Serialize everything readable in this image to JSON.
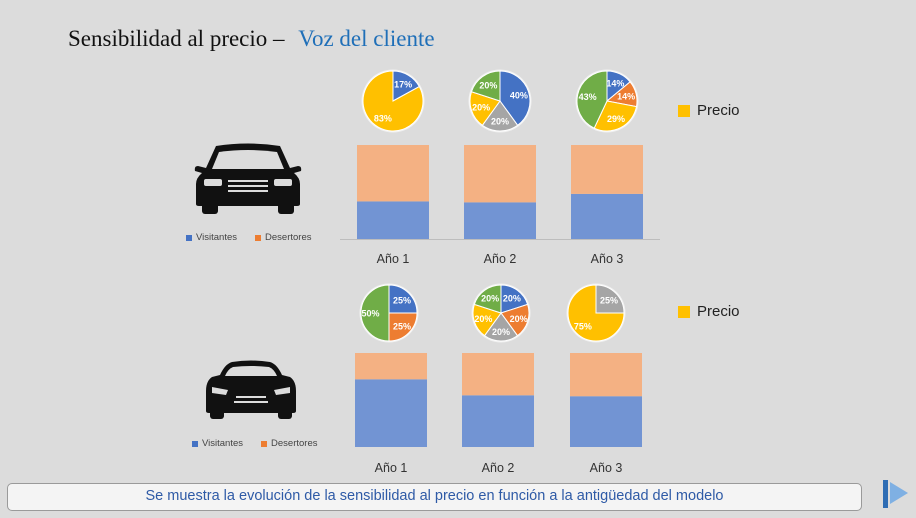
{
  "title": {
    "main": "Sensibilidad al precio –",
    "accent": "Voz del cliente"
  },
  "caption": "Se muestra la evolución de la sensibilidad al precio en función a la antigüedad del modelo",
  "colors": {
    "blue": "#4472c4",
    "orange": "#ed7d31",
    "gray": "#a5a5a5",
    "yellow": "#ffc000",
    "green": "#70ad47",
    "bar_blue": "#7294d3",
    "bar_orange": "#f4b183"
  },
  "icons": {
    "row1": "sedan-car-icon",
    "row2": "sports-car-icon",
    "logo": "brand-logo-icon"
  },
  "chart_data": [
    {
      "type": "bar",
      "stacked": true,
      "categories": [
        "Año 1",
        "Año 2",
        "Año 3"
      ],
      "series": [
        {
          "name": "Visitantes",
          "values": [
            40,
            39,
            48
          ]
        },
        {
          "name": "Desertores",
          "values": [
            60,
            61,
            52
          ]
        }
      ],
      "ylim": [
        0,
        100
      ],
      "legend": "bottom-left",
      "side_legend": "Precio",
      "pies": [
        {
          "slices": [
            {
              "value": 17,
              "label": "17%",
              "color": "blue"
            },
            {
              "value": 83,
              "label": "83%",
              "color": "yellow"
            }
          ]
        },
        {
          "slices": [
            {
              "value": 40,
              "label": "40%",
              "color": "blue"
            },
            {
              "value": 20,
              "label": "20%",
              "color": "gray"
            },
            {
              "value": 20,
              "label": "20%",
              "color": "yellow"
            },
            {
              "value": 20,
              "label": "20%",
              "color": "green"
            }
          ]
        },
        {
          "slices": [
            {
              "value": 14,
              "label": "14%",
              "color": "blue"
            },
            {
              "value": 14,
              "label": "14%",
              "color": "orange"
            },
            {
              "value": 29,
              "label": "29%",
              "color": "yellow"
            },
            {
              "value": 43,
              "label": "43%",
              "color": "green"
            }
          ]
        }
      ]
    },
    {
      "type": "bar",
      "stacked": true,
      "categories": [
        "Año 1",
        "Año 2",
        "Año 3"
      ],
      "series": [
        {
          "name": "Visitantes",
          "values": [
            72,
            55,
            54
          ]
        },
        {
          "name": "Desertores",
          "values": [
            28,
            45,
            46
          ]
        }
      ],
      "ylim": [
        0,
        100
      ],
      "legend": "bottom-left",
      "side_legend": "Precio",
      "pies": [
        {
          "slices": [
            {
              "value": 25,
              "label": "25%",
              "color": "blue"
            },
            {
              "value": 25,
              "label": "25%",
              "color": "orange"
            },
            {
              "value": 50,
              "label": "50%",
              "color": "green"
            }
          ]
        },
        {
          "slices": [
            {
              "value": 20,
              "label": "20%",
              "color": "blue"
            },
            {
              "value": 20,
              "label": "20%",
              "color": "orange"
            },
            {
              "value": 20,
              "label": "20%",
              "color": "gray"
            },
            {
              "value": 20,
              "label": "20%",
              "color": "yellow"
            },
            {
              "value": 20,
              "label": "20%",
              "color": "green"
            }
          ]
        },
        {
          "slices": [
            {
              "value": 25,
              "label": "25%",
              "color": "gray"
            },
            {
              "value": 75,
              "label": "75%",
              "color": "yellow"
            }
          ]
        }
      ]
    }
  ]
}
